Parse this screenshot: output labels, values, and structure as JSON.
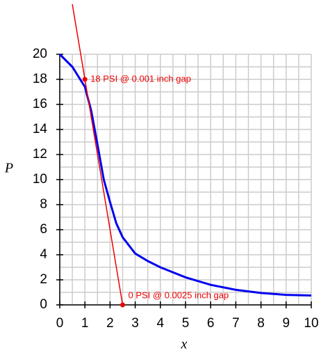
{
  "chart_data": {
    "type": "line",
    "x_label": "x",
    "y_label": "P",
    "xlim": [
      0,
      10
    ],
    "xticks": [
      0,
      1,
      2,
      3,
      4,
      5,
      6,
      7,
      8,
      9,
      10
    ],
    "ylim": [
      0,
      20
    ],
    "yticks": [
      0,
      2,
      4,
      6,
      8,
      10,
      12,
      14,
      16,
      18,
      20
    ],
    "grid": true,
    "series": [
      {
        "color": "#0000ee",
        "x": [
          0,
          0.5,
          1,
          1.25,
          1.5,
          1.75,
          2,
          2.25,
          2.5,
          3,
          3.5,
          4,
          5,
          6,
          7,
          8,
          9,
          10
        ],
        "values": [
          20,
          19,
          17.4,
          15.5,
          12.8,
          10,
          8.2,
          6.5,
          5.4,
          4.1,
          3.5,
          3.0,
          2.2,
          1.6,
          1.2,
          0.95,
          0.8,
          0.75
        ]
      },
      {
        "color": "#ee0000",
        "x": [
          0.5,
          2.5
        ],
        "values": [
          24,
          0
        ]
      }
    ],
    "points": [
      {
        "x": 1,
        "y": 18,
        "label": "18 PSI @ 0.001 inch gap",
        "color": "#ee0000"
      },
      {
        "x": 2.5,
        "y": 0,
        "label": "0 PSI @ 0.0025 inch gap",
        "color": "#ee0000"
      }
    ]
  }
}
